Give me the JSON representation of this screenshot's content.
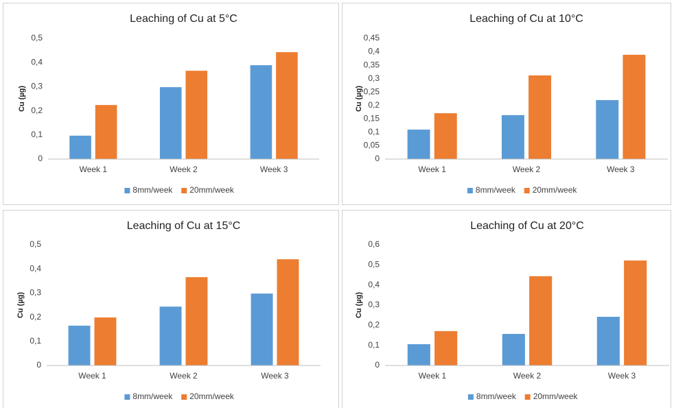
{
  "chart_data": [
    {
      "type": "bar",
      "title": "Leaching of Cu at 5°C",
      "y_label": "Cu (µg)",
      "categories": [
        "Week 1",
        "Week 2",
        "Week 3"
      ],
      "series": [
        {
          "name": "8mm/week",
          "color": "#5b9bd5",
          "values": [
            0.097,
            0.298,
            0.389
          ]
        },
        {
          "name": "20mm/week",
          "color": "#ed7d31",
          "values": [
            0.224,
            0.366,
            0.443
          ]
        }
      ],
      "ylim": [
        0,
        0.5
      ],
      "yticks": [
        0,
        {
          "value": 0.1,
          "label": "0,1"
        },
        {
          "value": 0.2,
          "label": "0,2"
        },
        {
          "value": 0.3,
          "label": "0,3"
        },
        {
          "value": 0.4,
          "label": "0,4"
        },
        {
          "value": 0.5,
          "label": "0,5"
        }
      ]
    },
    {
      "type": "bar",
      "title": "Leaching of Cu at 10°C",
      "y_label": "Cu (µg)",
      "categories": [
        "Week 1",
        "Week 2",
        "Week 3"
      ],
      "series": [
        {
          "name": "8mm/week",
          "color": "#5b9bd5",
          "values": [
            0.11,
            0.164,
            0.22
          ]
        },
        {
          "name": "20mm/week",
          "color": "#ed7d31",
          "values": [
            0.171,
            0.312,
            0.389
          ]
        }
      ],
      "ylim": [
        0,
        0.45
      ],
      "yticks": [
        0,
        {
          "value": 0.05,
          "label": "0,05"
        },
        {
          "value": 0.1,
          "label": "0,1"
        },
        {
          "value": 0.15,
          "label": "0,15"
        },
        {
          "value": 0.2,
          "label": "0,2"
        },
        {
          "value": 0.25,
          "label": "0,25"
        },
        {
          "value": 0.3,
          "label": "0,3"
        },
        {
          "value": 0.35,
          "label": "0,35"
        },
        {
          "value": 0.4,
          "label": "0,4"
        },
        {
          "value": 0.45,
          "label": "0,45"
        }
      ]
    },
    {
      "type": "bar",
      "title": "Leaching of Cu at 15°C",
      "y_label": "Cu (µg)",
      "categories": [
        "Week 1",
        "Week 2",
        "Week 3"
      ],
      "series": [
        {
          "name": "8mm/week",
          "color": "#5b9bd5",
          "values": [
            0.165,
            0.244,
            0.298
          ]
        },
        {
          "name": "20mm/week",
          "color": "#ed7d31",
          "values": [
            0.199,
            0.366,
            0.44
          ]
        }
      ],
      "ylim": [
        0,
        0.5
      ],
      "yticks": [
        0,
        {
          "value": 0.1,
          "label": "0,1"
        },
        {
          "value": 0.2,
          "label": "0,2"
        },
        {
          "value": 0.3,
          "label": "0,3"
        },
        {
          "value": 0.4,
          "label": "0,4"
        },
        {
          "value": 0.5,
          "label": "0,5"
        }
      ]
    },
    {
      "type": "bar",
      "title": "Leaching of Cu at 20°C",
      "y_label": "Cu (µg)",
      "categories": [
        "Week 1",
        "Week 2",
        "Week 3"
      ],
      "series": [
        {
          "name": "8mm/week",
          "color": "#5b9bd5",
          "values": [
            0.106,
            0.157,
            0.242
          ]
        },
        {
          "name": "20mm/week",
          "color": "#ed7d31",
          "values": [
            0.171,
            0.444,
            0.522
          ]
        }
      ],
      "ylim": [
        0,
        0.6
      ],
      "yticks": [
        0,
        {
          "value": 0.1,
          "label": "0,1"
        },
        {
          "value": 0.2,
          "label": "0,2"
        },
        {
          "value": 0.3,
          "label": "0,3"
        },
        {
          "value": 0.4,
          "label": "0,4"
        },
        {
          "value": 0.5,
          "label": "0,5"
        },
        {
          "value": 0.6,
          "label": "0,6"
        }
      ]
    }
  ]
}
